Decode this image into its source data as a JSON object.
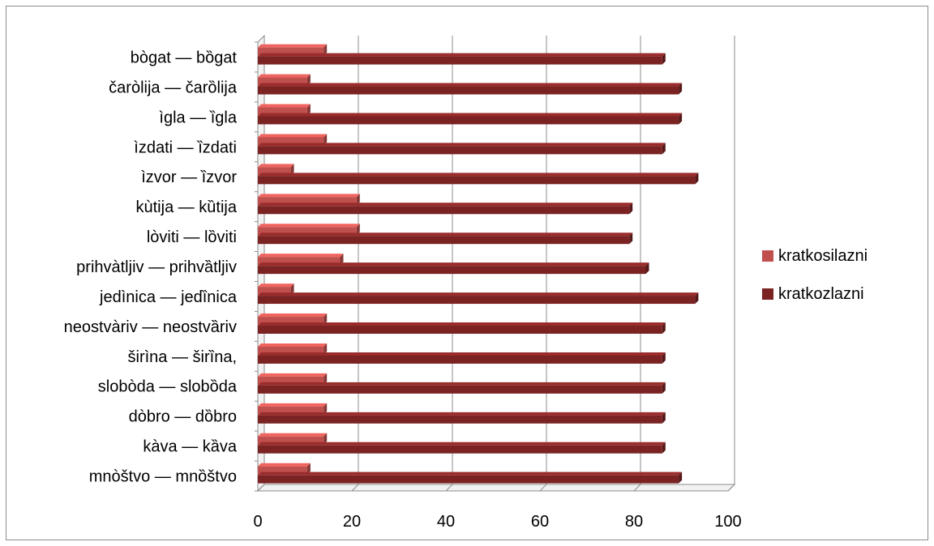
{
  "chart_data": {
    "type": "bar",
    "orientation": "horizontal",
    "style": "3d",
    "categories": [
      "bògat — bȍgat",
      "čaròlija — čarȍlija",
      "ìgla — ȉgla",
      "ìzdati — ȉzdati",
      "ìzvor — ȉzvor",
      "kùtija — kȕtija",
      "lòviti — lȍviti",
      "prihvàtljiv — prihvȁtljiv",
      "jedìnica — jedȉnica",
      "neostvàriv — neostvȁriv",
      "širìna — širȉna,",
      "slobòda — slobȍda",
      "dòbro — dȍbro",
      "kàva — kȁva",
      "mnòštvo — mnȍštvo"
    ],
    "series": [
      {
        "name": "kratkosilazni",
        "color": "#c0504d",
        "values": [
          14,
          10.5,
          10.5,
          14,
          7,
          21,
          21,
          17.5,
          7,
          14,
          14,
          14,
          14,
          14,
          10.5
        ]
      },
      {
        "name": "kratkozlazni",
        "color": "#7b2323",
        "values": [
          86,
          89.5,
          89.5,
          86,
          93,
          79,
          79,
          82.5,
          93,
          86,
          86,
          86,
          86,
          86,
          89.5
        ]
      }
    ],
    "xlim": [
      0,
      100
    ],
    "xticks": [
      "0",
      "20",
      "40",
      "60",
      "80",
      "100"
    ],
    "xlabel": "",
    "ylabel": "",
    "title": "",
    "grid": true,
    "legend_position": "right"
  }
}
